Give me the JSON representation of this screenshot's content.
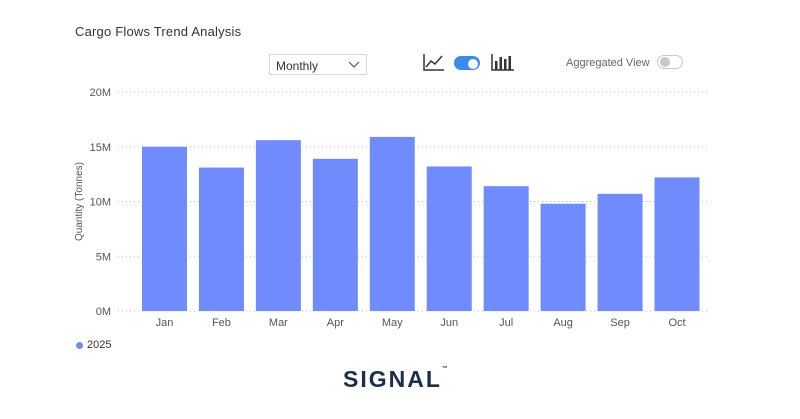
{
  "title": "Cargo Flows Trend Analysis",
  "controls": {
    "period_selected": "Monthly",
    "line_view_icon": "line-chart-icon",
    "bar_view_icon": "bar-chart-icon",
    "view_toggle_on": true,
    "aggregated_label": "Aggregated View",
    "aggregated_on": false,
    "accent_color": "#3b8beb"
  },
  "legend": {
    "label": "2025",
    "color": "#6f8bfc"
  },
  "logo": {
    "text": "SIGNAL",
    "tm": "™",
    "color": "#1c2e4a"
  },
  "chart_data": {
    "type": "bar",
    "categories": [
      "Jan",
      "Feb",
      "Mar",
      "Apr",
      "May",
      "Jun",
      "Jul",
      "Aug",
      "Sep",
      "Oct"
    ],
    "series": [
      {
        "name": "2025",
        "values": [
          15000000,
          13100000,
          15600000,
          13900000,
          15900000,
          13200000,
          11400000,
          9800000,
          10700000,
          12200000
        ]
      }
    ],
    "xlabel": "",
    "ylabel": "Quantity (Tonnes)",
    "ylim": [
      0,
      20000000
    ],
    "yticks": [
      0,
      5000000,
      10000000,
      15000000,
      20000000
    ],
    "ytick_labels": [
      "0M",
      "5M",
      "10M",
      "15M",
      "20M"
    ],
    "grid": true,
    "bar_color": "#6f8bfc"
  }
}
